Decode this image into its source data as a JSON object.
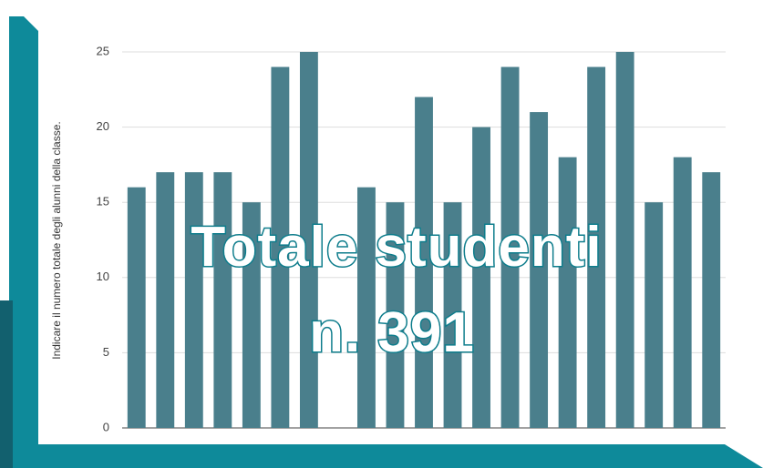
{
  "chart_data": {
    "type": "bar",
    "y_label": "Indicare il numero totale degli alunni della classe.",
    "categories": [
      null,
      null,
      null,
      null,
      null,
      null,
      null,
      null,
      null,
      null,
      null,
      null,
      null,
      null,
      null,
      null,
      null,
      null,
      null,
      null,
      null
    ],
    "values": [
      16,
      17,
      17,
      17,
      15,
      24,
      25,
      null,
      16,
      15,
      22,
      15,
      20,
      24,
      21,
      18,
      24,
      25,
      15,
      18,
      17
    ],
    "color": "#4a7f8c",
    "ylim": [
      0,
      25
    ],
    "yticks": [
      0,
      5,
      10,
      15,
      20,
      25
    ],
    "grid": true,
    "annotations": [
      "Totale studenti",
      "n. 391"
    ]
  }
}
